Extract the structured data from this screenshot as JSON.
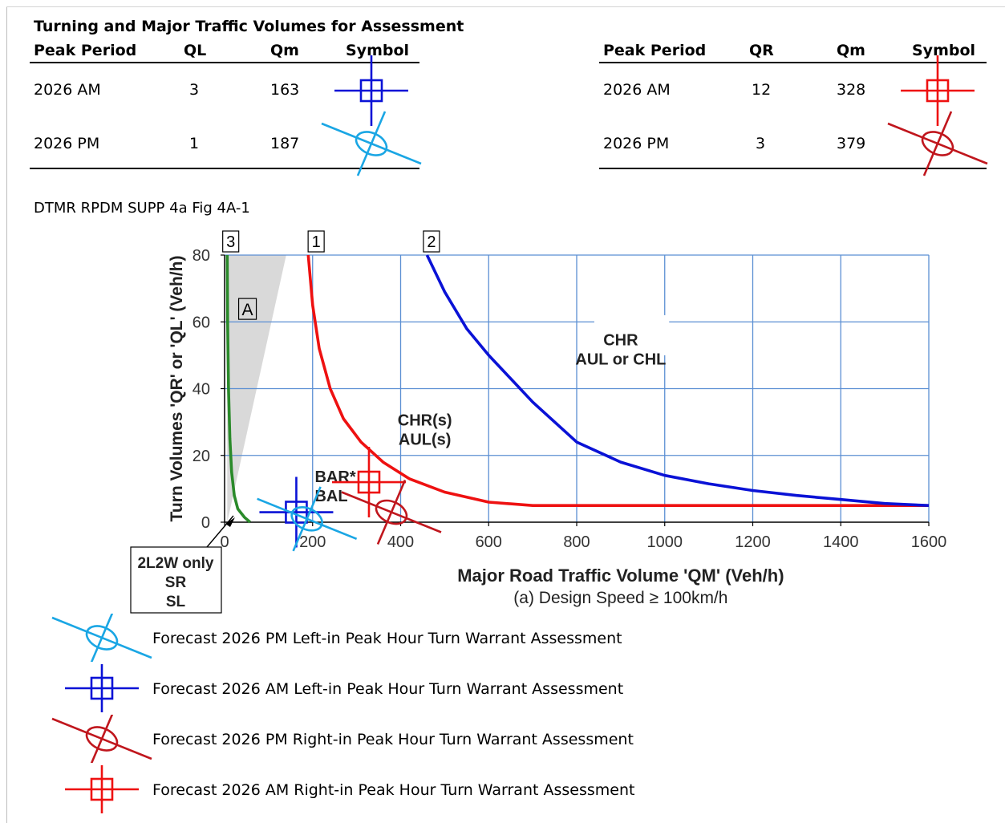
{
  "table_title": "Turning and Major Traffic Volumes for Assessment",
  "left_table": {
    "headers": [
      "Peak Period",
      "QL",
      "Qm",
      "Symbol"
    ],
    "rows": [
      {
        "period": "2026 AM",
        "q": "3",
        "qm": "163",
        "symbol": "blue-square-cross"
      },
      {
        "period": "2026 PM",
        "q": "1",
        "qm": "187",
        "symbol": "cyan-ellipse-cross"
      }
    ]
  },
  "right_table": {
    "headers": [
      "Peak Period",
      "QR",
      "Qm",
      "Symbol"
    ],
    "rows": [
      {
        "period": "2026 AM",
        "q": "12",
        "qm": "328",
        "symbol": "red-square-cross"
      },
      {
        "period": "2026 PM",
        "q": "3",
        "qm": "379",
        "symbol": "darkred-ellipse-cross"
      }
    ]
  },
  "figure_caption": "DTMR RPDM SUPP 4a Fig 4A-1",
  "colors": {
    "blue": "#0a12d6",
    "cyan": "#1aa6e4",
    "red": "#ee1111",
    "darkred": "#c0161d",
    "green": "#2a8a2a",
    "grid": "#5b8fd3",
    "shade": "#d9d9d9"
  },
  "chart_data": {
    "type": "line",
    "xlabel": "Major Road Traffic Volume 'QM' (Veh/h)",
    "subtitle": "(a) Design Speed ≥ 100km/h",
    "ylabel": "Turn Volumes 'QR' or 'QL' (Veh/h)",
    "xlim": [
      0,
      1600
    ],
    "ylim": [
      0,
      80
    ],
    "xticks": [
      0,
      200,
      400,
      600,
      800,
      1000,
      1200,
      1400,
      1600
    ],
    "yticks": [
      0,
      20,
      40,
      60,
      80
    ],
    "grid": true,
    "curve_labels": [
      "3",
      "1",
      "2"
    ],
    "series": [
      {
        "name": "3",
        "color": "green",
        "x": [
          6,
          7,
          9,
          12,
          16,
          22,
          30,
          45,
          58
        ],
        "y": [
          80,
          60,
          40,
          25,
          15,
          8,
          4,
          1.5,
          0
        ]
      },
      {
        "name": "1",
        "color": "red",
        "x": [
          190,
          200,
          215,
          240,
          270,
          310,
          360,
          420,
          500,
          600,
          700,
          800,
          1000,
          1200,
          1400,
          1600
        ],
        "y": [
          80,
          65,
          52,
          40,
          31,
          24,
          18,
          13,
          9,
          6,
          5,
          5,
          5,
          5,
          5,
          5
        ]
      },
      {
        "name": "2",
        "color": "blue",
        "x": [
          460,
          500,
          550,
          600,
          650,
          700,
          800,
          900,
          1000,
          1100,
          1200,
          1300,
          1400,
          1500,
          1600
        ],
        "y": [
          80,
          69,
          58,
          50,
          43,
          36,
          24,
          18,
          14,
          11.5,
          9.5,
          8,
          6.8,
          5.6,
          5
        ]
      }
    ],
    "shaded_area": {
      "label": "A",
      "x": [
        6,
        140,
        6
      ],
      "y": [
        80,
        80,
        0
      ]
    },
    "region_labels": [
      {
        "lines": [
          "CHR",
          "AUL or CHL"
        ],
        "x": 900,
        "y": 53
      },
      {
        "lines": [
          "CHR(s)",
          "AUL(s)"
        ],
        "x": 455,
        "y": 29
      },
      {
        "lines": [
          "BAR*",
          "BAL"
        ],
        "x": 205,
        "y": 12
      }
    ],
    "callout_box": {
      "lines": [
        "2L2W only",
        "SR",
        "SL"
      ]
    },
    "points": [
      {
        "symbol": "blue-square-cross",
        "x": 163,
        "y": 3
      },
      {
        "symbol": "cyan-ellipse-cross",
        "x": 187,
        "y": 1
      },
      {
        "symbol": "red-square-cross",
        "x": 328,
        "y": 12
      },
      {
        "symbol": "darkred-ellipse-cross",
        "x": 379,
        "y": 3
      }
    ]
  },
  "legend": [
    {
      "symbol": "cyan-ellipse-cross",
      "text": "Forecast 2026 PM Left-in Peak Hour Turn Warrant Assessment"
    },
    {
      "symbol": "blue-square-cross",
      "text": "Forecast 2026 AM Left-in Peak Hour Turn Warrant Assessment"
    },
    {
      "symbol": "darkred-ellipse-cross",
      "text": "Forecast 2026 PM Right-in Peak Hour Turn Warrant Assessment"
    },
    {
      "symbol": "red-square-cross",
      "text": "Forecast 2026 AM Right-in Peak Hour Turn Warrant Assessment"
    }
  ]
}
